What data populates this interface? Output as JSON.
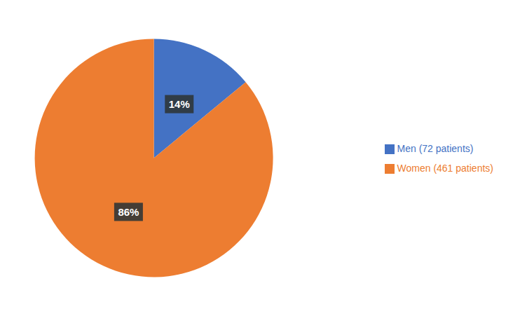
{
  "chart_data": {
    "type": "pie",
    "categories": [
      "Men (72 patients)",
      "Women (461 patients)"
    ],
    "values": [
      14,
      86
    ],
    "value_labels": [
      "14%",
      "86%"
    ],
    "colors": [
      "#4472C4",
      "#ED7D31"
    ],
    "data_labels": true,
    "legend": "right"
  }
}
